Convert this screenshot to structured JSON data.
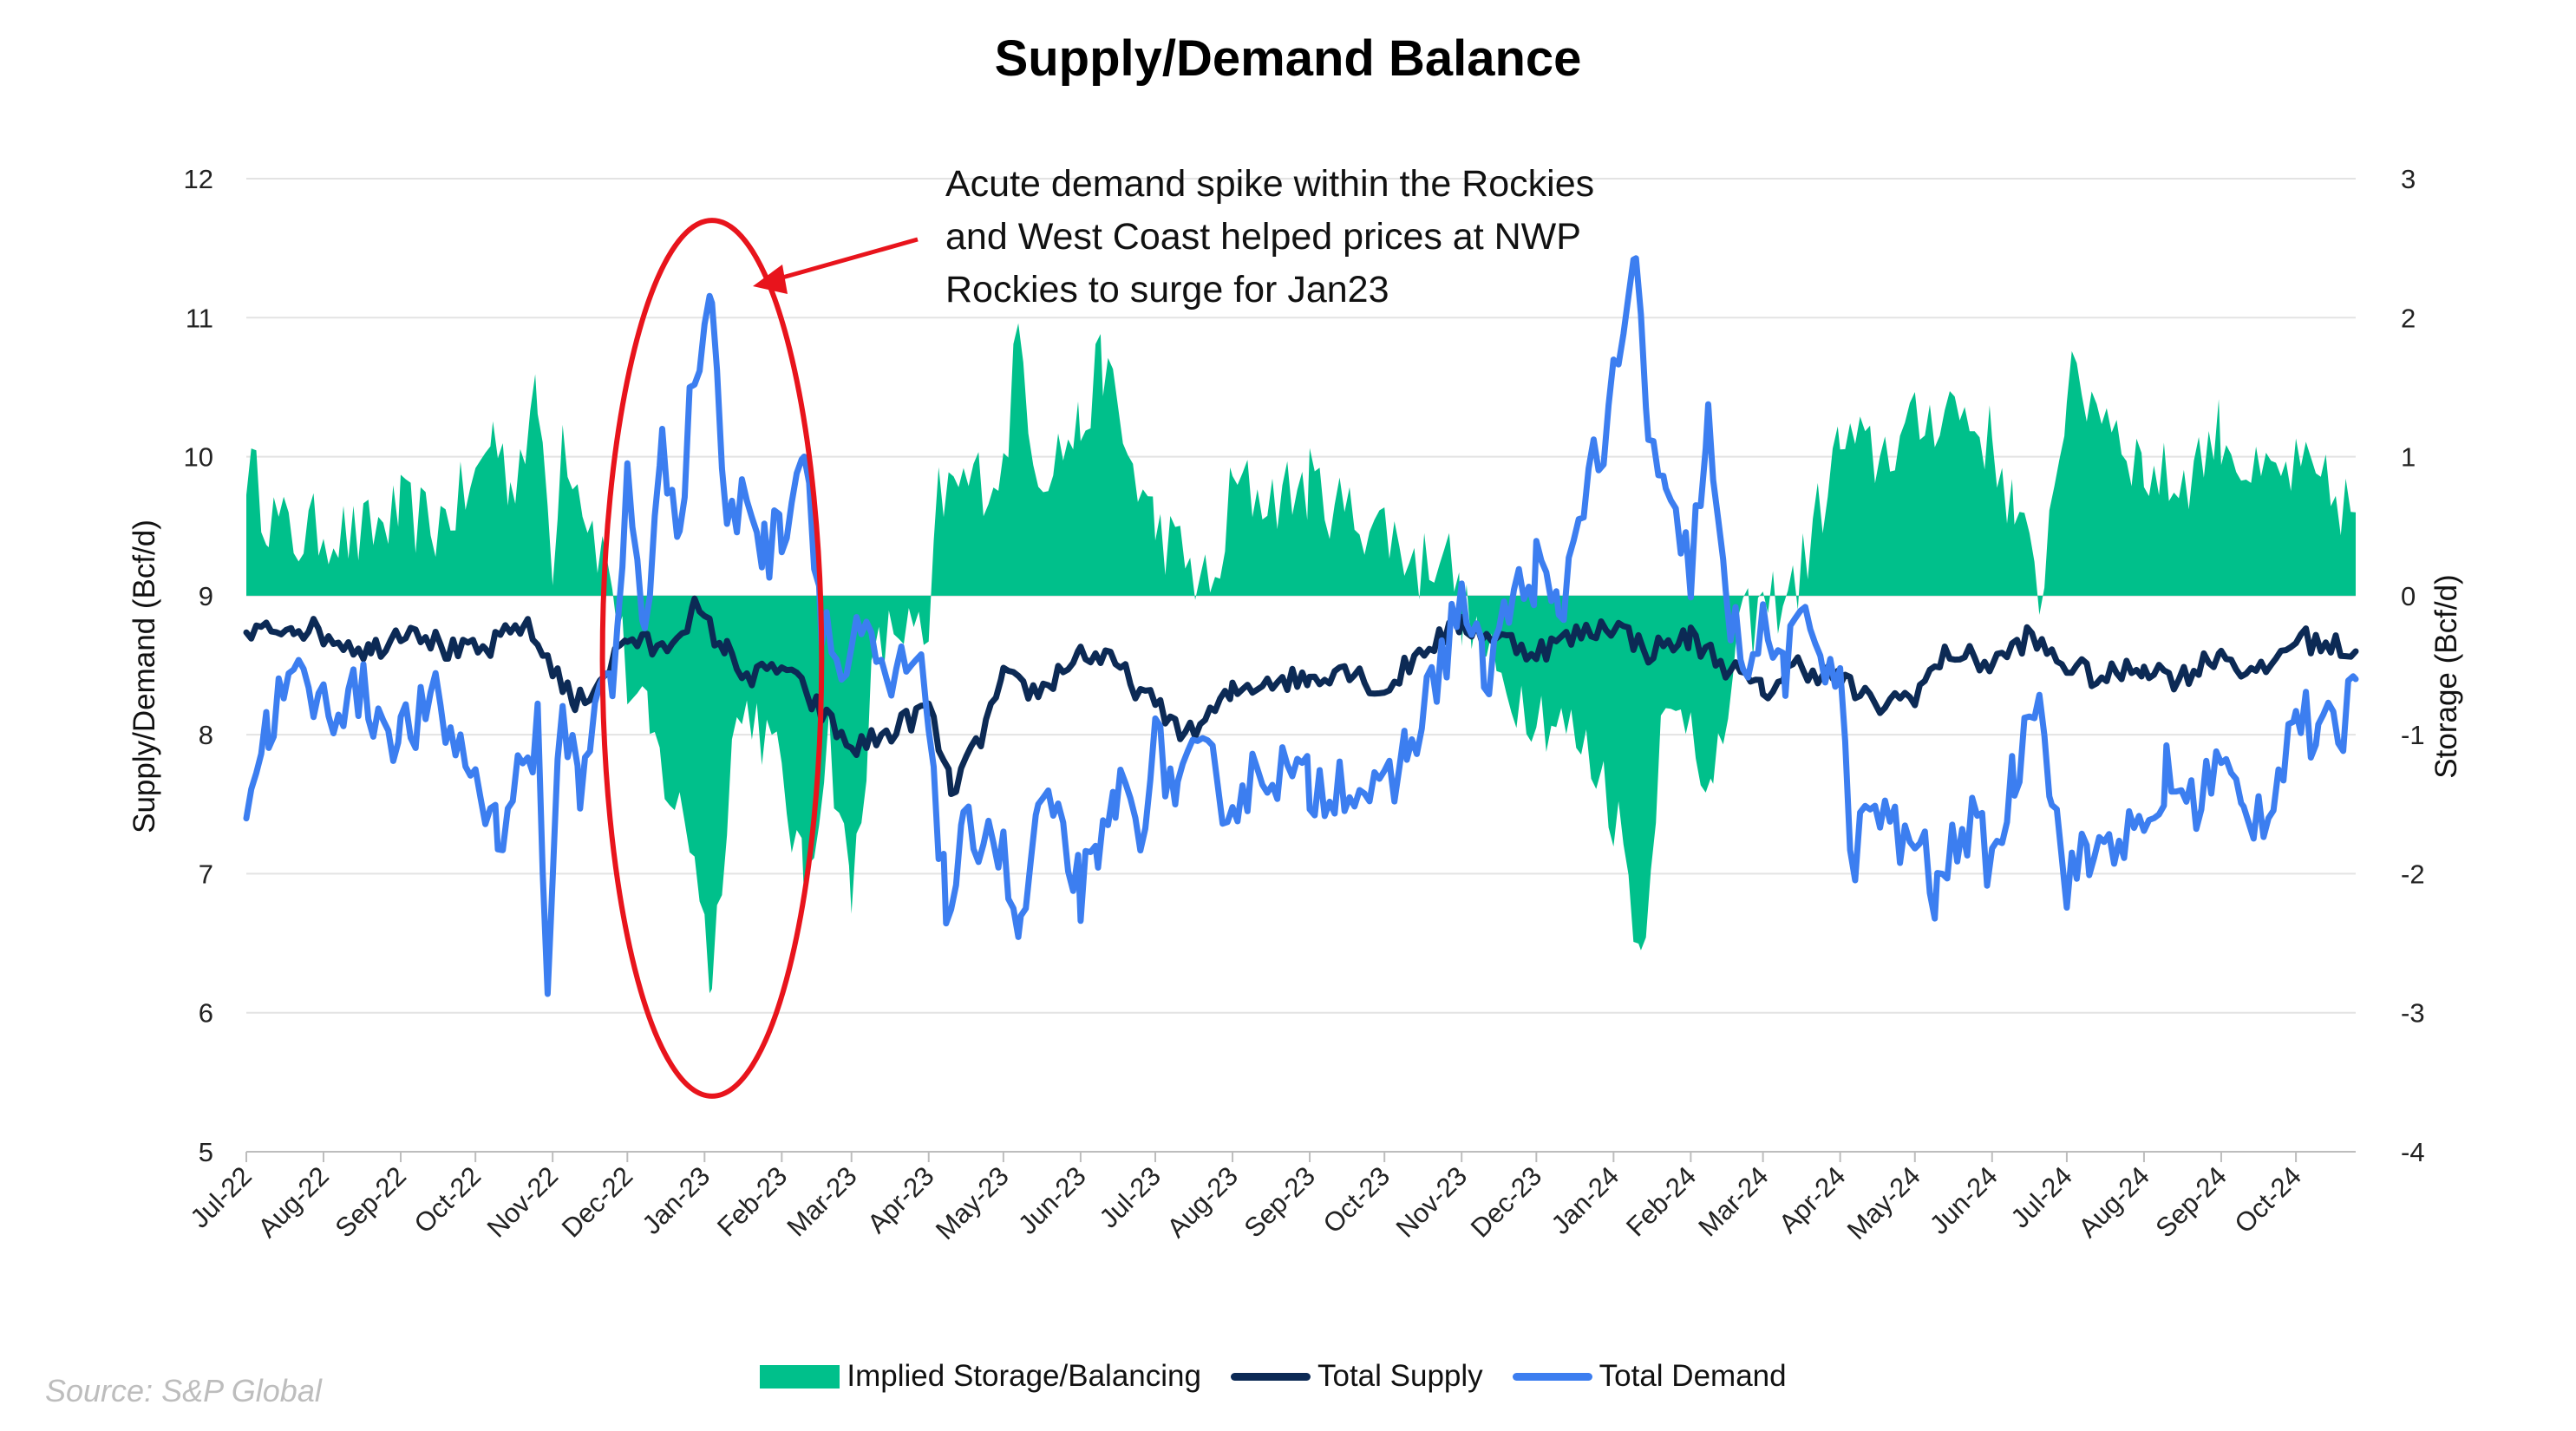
{
  "chart_data": {
    "type": "area+line",
    "title": "Supply/Demand Balance",
    "ylabel_left": "Supply/Demand (Bcf/d)",
    "ylabel_right": "Storage (Bcf/d)",
    "ylim_left": [
      5,
      12
    ],
    "ylim_right": [
      -4,
      3
    ],
    "yticks_left": [
      "5",
      "6",
      "7",
      "8",
      "9",
      "10",
      "11",
      "12"
    ],
    "yticks_right": [
      "-4",
      "-3",
      "-2",
      "-1",
      "0",
      "1",
      "2",
      "3"
    ],
    "x_range": [
      "2022-07-01",
      "2024-10-25"
    ],
    "xticks": [
      "Jul-22",
      "Aug-22",
      "Sep-22",
      "Oct-22",
      "Nov-22",
      "Dec-22",
      "Jan-23",
      "Feb-23",
      "Mar-23",
      "Apr-23",
      "May-23",
      "Jun-23",
      "Jul-23",
      "Aug-23",
      "Sep-23",
      "Oct-23",
      "Nov-23",
      "Dec-23",
      "Jan-24",
      "Feb-24",
      "Mar-24",
      "Apr-24",
      "May-24",
      "Jun-24",
      "Jul-24",
      "Aug-24",
      "Sep-24",
      "Oct-24"
    ],
    "grid": "horizontal",
    "legend_position": "bottom",
    "series": [
      {
        "name": "Implied Storage/Balancing",
        "kind": "area",
        "axis": "right",
        "color": "#00c08b",
        "points": [
          [
            "2022-07-01",
            0.95
          ],
          [
            "2022-07-10",
            0.6
          ],
          [
            "2022-07-20",
            0.4
          ],
          [
            "2022-08-01",
            0.5
          ],
          [
            "2022-08-15",
            0.4
          ],
          [
            "2022-09-01",
            0.6
          ],
          [
            "2022-09-15",
            0.5
          ],
          [
            "2022-10-01",
            0.8
          ],
          [
            "2022-10-08",
            1.2
          ],
          [
            "2022-10-15",
            0.8
          ],
          [
            "2022-10-26",
            1.4
          ],
          [
            "2022-11-01",
            0.3
          ],
          [
            "2022-11-05",
            1.2
          ],
          [
            "2022-11-15",
            0.6
          ],
          [
            "2022-11-25",
            0.1
          ],
          [
            "2022-12-01",
            -0.6
          ],
          [
            "2022-12-10",
            -1.0
          ],
          [
            "2022-12-20",
            -1.5
          ],
          [
            "2022-12-28",
            -1.8
          ],
          [
            "2023-01-04",
            -2.8
          ],
          [
            "2023-01-12",
            -1.0
          ],
          [
            "2023-01-20",
            -0.8
          ],
          [
            "2023-02-01",
            -1.3
          ],
          [
            "2023-02-10",
            -2.1
          ],
          [
            "2023-02-20",
            -1.0
          ],
          [
            "2023-03-01",
            -2.2
          ],
          [
            "2023-03-10",
            -0.5
          ],
          [
            "2023-03-20",
            -0.2
          ],
          [
            "2023-04-01",
            -0.4
          ],
          [
            "2023-04-05",
            0.7
          ],
          [
            "2023-04-15",
            0.8
          ],
          [
            "2023-05-01",
            0.9
          ],
          [
            "2023-05-07",
            1.9
          ],
          [
            "2023-05-15",
            0.9
          ],
          [
            "2023-06-01",
            1.2
          ],
          [
            "2023-06-10",
            1.7
          ],
          [
            "2023-06-20",
            1.0
          ],
          [
            "2023-07-01",
            0.5
          ],
          [
            "2023-07-15",
            0.2
          ],
          [
            "2023-07-25",
            0.0
          ],
          [
            "2023-08-01",
            0.8
          ],
          [
            "2023-08-15",
            0.7
          ],
          [
            "2023-09-01",
            0.8
          ],
          [
            "2023-09-15",
            0.6
          ],
          [
            "2023-10-01",
            0.5
          ],
          [
            "2023-10-15",
            0.2
          ],
          [
            "2023-10-25",
            0.4
          ],
          [
            "2023-11-01",
            -0.1
          ],
          [
            "2023-11-15",
            -0.6
          ],
          [
            "2023-12-01",
            -0.8
          ],
          [
            "2023-12-15",
            -1.0
          ],
          [
            "2023-12-28",
            -1.3
          ],
          [
            "2024-01-05",
            -1.8
          ],
          [
            "2024-01-12",
            -2.6
          ],
          [
            "2024-01-20",
            -1.0
          ],
          [
            "2024-02-01",
            -0.8
          ],
          [
            "2024-02-10",
            -1.5
          ],
          [
            "2024-02-20",
            -0.3
          ],
          [
            "2024-03-01",
            -0.1
          ],
          [
            "2024-03-15",
            0.1
          ],
          [
            "2024-04-01",
            1.1
          ],
          [
            "2024-04-15",
            1.0
          ],
          [
            "2024-05-01",
            1.2
          ],
          [
            "2024-05-15",
            1.4
          ],
          [
            "2024-06-01",
            1.1
          ],
          [
            "2024-06-10",
            0.6
          ],
          [
            "2024-06-20",
            0.0
          ],
          [
            "2024-07-01",
            1.5
          ],
          [
            "2024-07-15",
            1.4
          ],
          [
            "2024-08-01",
            0.9
          ],
          [
            "2024-08-15",
            0.8
          ],
          [
            "2024-09-01",
            1.2
          ],
          [
            "2024-09-15",
            0.8
          ],
          [
            "2024-10-01",
            0.9
          ],
          [
            "2024-10-25",
            0.6
          ]
        ]
      },
      {
        "name": "Total Supply",
        "kind": "line",
        "axis": "left",
        "color": "#0c2a55",
        "points": [
          [
            "2022-07-01",
            8.7
          ],
          [
            "2022-07-20",
            8.8
          ],
          [
            "2022-08-05",
            8.7
          ],
          [
            "2022-08-20",
            8.6
          ],
          [
            "2022-09-05",
            8.8
          ],
          [
            "2022-09-20",
            8.6
          ],
          [
            "2022-10-05",
            8.6
          ],
          [
            "2022-10-20",
            8.8
          ],
          [
            "2022-11-01",
            8.5
          ],
          [
            "2022-11-10",
            8.2
          ],
          [
            "2022-11-20",
            8.4
          ],
          [
            "2022-12-01",
            8.7
          ],
          [
            "2022-12-15",
            8.6
          ],
          [
            "2022-12-28",
            8.9
          ],
          [
            "2023-01-10",
            8.6
          ],
          [
            "2023-01-20",
            8.4
          ],
          [
            "2023-02-01",
            8.5
          ],
          [
            "2023-02-15",
            8.2
          ],
          [
            "2023-03-01",
            7.9
          ],
          [
            "2023-03-15",
            8.0
          ],
          [
            "2023-04-01",
            8.2
          ],
          [
            "2023-04-10",
            7.6
          ],
          [
            "2023-04-20",
            7.9
          ],
          [
            "2023-05-01",
            8.4
          ],
          [
            "2023-05-15",
            8.3
          ],
          [
            "2023-06-01",
            8.6
          ],
          [
            "2023-06-15",
            8.5
          ],
          [
            "2023-07-01",
            8.2
          ],
          [
            "2023-07-15",
            8.0
          ],
          [
            "2023-08-01",
            8.3
          ],
          [
            "2023-08-15",
            8.4
          ],
          [
            "2023-09-01",
            8.4
          ],
          [
            "2023-09-15",
            8.5
          ],
          [
            "2023-10-01",
            8.3
          ],
          [
            "2023-10-15",
            8.6
          ],
          [
            "2023-11-01",
            8.8
          ],
          [
            "2023-11-15",
            8.7
          ],
          [
            "2023-12-01",
            8.6
          ],
          [
            "2023-12-15",
            8.7
          ],
          [
            "2024-01-01",
            8.8
          ],
          [
            "2024-01-15",
            8.6
          ],
          [
            "2024-02-01",
            8.7
          ],
          [
            "2024-02-15",
            8.5
          ],
          [
            "2024-03-01",
            8.3
          ],
          [
            "2024-03-15",
            8.5
          ],
          [
            "2024-04-01",
            8.4
          ],
          [
            "2024-04-15",
            8.2
          ],
          [
            "2024-05-01",
            8.3
          ],
          [
            "2024-05-15",
            8.6
          ],
          [
            "2024-06-01",
            8.5
          ],
          [
            "2024-06-15",
            8.7
          ],
          [
            "2024-07-01",
            8.5
          ],
          [
            "2024-07-15",
            8.4
          ],
          [
            "2024-08-01",
            8.5
          ],
          [
            "2024-08-15",
            8.4
          ],
          [
            "2024-09-01",
            8.6
          ],
          [
            "2024-09-15",
            8.4
          ],
          [
            "2024-10-01",
            8.7
          ],
          [
            "2024-10-25",
            8.6
          ]
        ]
      },
      {
        "name": "Total Demand",
        "kind": "line",
        "axis": "left",
        "color": "#3c7ef0",
        "points": [
          [
            "2022-07-01",
            7.5
          ],
          [
            "2022-07-10",
            8.1
          ],
          [
            "2022-07-20",
            8.4
          ],
          [
            "2022-08-01",
            8.2
          ],
          [
            "2022-08-15",
            8.3
          ],
          [
            "2022-09-01",
            8.0
          ],
          [
            "2022-09-15",
            8.2
          ],
          [
            "2022-10-01",
            7.7
          ],
          [
            "2022-10-10",
            7.3
          ],
          [
            "2022-10-20",
            7.8
          ],
          [
            "2022-10-26",
            8.0
          ],
          [
            "2022-10-30",
            5.9
          ],
          [
            "2022-11-01",
            7.2
          ],
          [
            "2022-11-05",
            8.2
          ],
          [
            "2022-11-12",
            7.6
          ],
          [
            "2022-11-20",
            8.5
          ],
          [
            "2022-11-25",
            8.2
          ],
          [
            "2022-12-01",
            9.8
          ],
          [
            "2022-12-08",
            8.8
          ],
          [
            "2022-12-15",
            10.0
          ],
          [
            "2022-12-22",
            9.6
          ],
          [
            "2022-12-28",
            10.6
          ],
          [
            "2023-01-04",
            11.2
          ],
          [
            "2023-01-10",
            9.4
          ],
          [
            "2023-01-18",
            9.8
          ],
          [
            "2023-01-25",
            9.3
          ],
          [
            "2023-02-01",
            9.5
          ],
          [
            "2023-02-10",
            10.1
          ],
          [
            "2023-02-17",
            8.9
          ],
          [
            "2023-02-25",
            8.4
          ],
          [
            "2023-03-05",
            8.7
          ],
          [
            "2023-03-15",
            8.3
          ],
          [
            "2023-03-25",
            8.5
          ],
          [
            "2023-04-01",
            8.2
          ],
          [
            "2023-04-08",
            6.7
          ],
          [
            "2023-04-15",
            7.2
          ],
          [
            "2023-04-25",
            7.4
          ],
          [
            "2023-05-01",
            7.1
          ],
          [
            "2023-05-08",
            6.5
          ],
          [
            "2023-05-15",
            7.5
          ],
          [
            "2023-05-25",
            7.2
          ],
          [
            "2023-06-01",
            6.9
          ],
          [
            "2023-06-08",
            7.0
          ],
          [
            "2023-06-15",
            7.6
          ],
          [
            "2023-06-25",
            7.4
          ],
          [
            "2023-07-01",
            7.9
          ],
          [
            "2023-07-10",
            7.6
          ],
          [
            "2023-07-20",
            7.8
          ],
          [
            "2023-08-01",
            7.5
          ],
          [
            "2023-08-15",
            7.8
          ],
          [
            "2023-09-01",
            7.6
          ],
          [
            "2023-09-15",
            7.7
          ],
          [
            "2023-10-01",
            7.5
          ],
          [
            "2023-10-10",
            7.9
          ],
          [
            "2023-10-20",
            8.3
          ],
          [
            "2023-11-01",
            9.0
          ],
          [
            "2023-11-10",
            8.4
          ],
          [
            "2023-11-20",
            8.9
          ],
          [
            "2023-12-01",
            9.2
          ],
          [
            "2023-12-10",
            8.8
          ],
          [
            "2023-12-20",
            9.8
          ],
          [
            "2023-12-28",
            10.1
          ],
          [
            "2024-01-05",
            10.8
          ],
          [
            "2024-01-10",
            11.4
          ],
          [
            "2024-01-15",
            10.2
          ],
          [
            "2024-01-22",
            9.6
          ],
          [
            "2024-02-01",
            9.2
          ],
          [
            "2024-02-08",
            10.2
          ],
          [
            "2024-02-15",
            8.9
          ],
          [
            "2024-02-22",
            8.6
          ],
          [
            "2024-03-01",
            8.7
          ],
          [
            "2024-03-10",
            8.5
          ],
          [
            "2024-03-20",
            8.8
          ],
          [
            "2024-04-01",
            8.4
          ],
          [
            "2024-04-05",
            7.1
          ],
          [
            "2024-04-15",
            7.5
          ],
          [
            "2024-04-25",
            7.2
          ],
          [
            "2024-05-01",
            7.3
          ],
          [
            "2024-05-10",
            6.8
          ],
          [
            "2024-05-20",
            7.4
          ],
          [
            "2024-06-01",
            7.1
          ],
          [
            "2024-06-10",
            7.7
          ],
          [
            "2024-06-20",
            8.5
          ],
          [
            "2024-06-25",
            7.5
          ],
          [
            "2024-07-01",
            7.0
          ],
          [
            "2024-07-10",
            7.1
          ],
          [
            "2024-07-20",
            7.3
          ],
          [
            "2024-08-01",
            7.2
          ],
          [
            "2024-08-10",
            7.7
          ],
          [
            "2024-08-20",
            7.5
          ],
          [
            "2024-09-01",
            7.8
          ],
          [
            "2024-09-10",
            7.4
          ],
          [
            "2024-09-20",
            7.5
          ],
          [
            "2024-10-01",
            8.2
          ],
          [
            "2024-10-10",
            7.9
          ],
          [
            "2024-10-20",
            8.1
          ],
          [
            "2024-10-25",
            8.4
          ]
        ]
      }
    ],
    "annotation": {
      "text": "Acute demand spike within the Rockies\nand West Coast helped prices at NWP\nRockies to surge for Jan23",
      "ellipse_center": [
        "2023-01-04",
        8.6
      ],
      "ellipse_x_extent": [
        "2022-11-21",
        "2023-02-17"
      ],
      "ellipse_y_extent": [
        5.4,
        11.7
      ],
      "color": "#e8141c"
    },
    "source": "Source: S&P Global"
  }
}
